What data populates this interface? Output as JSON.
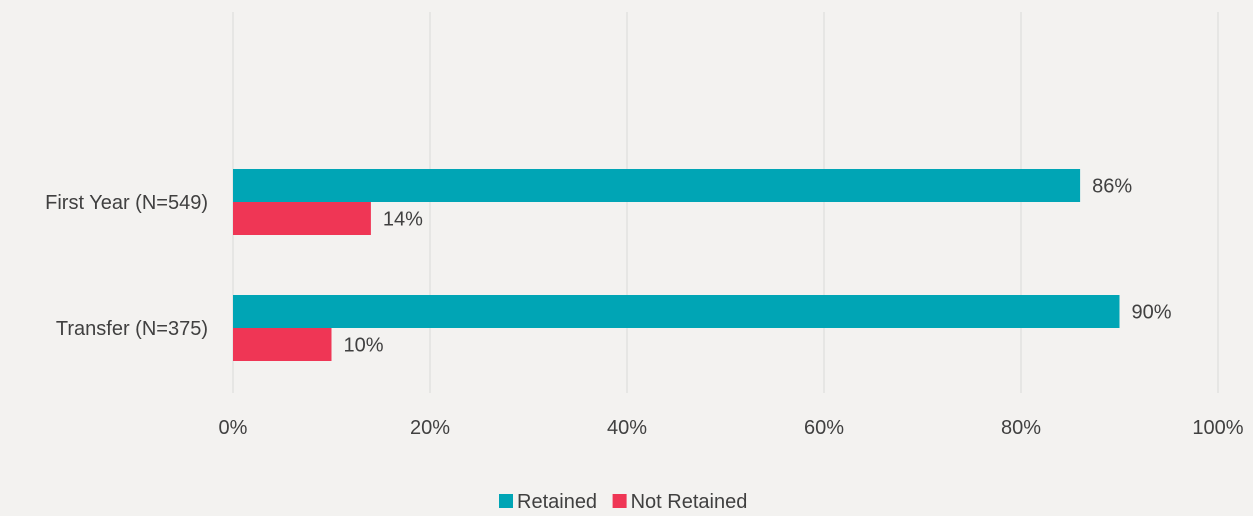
{
  "chart_data": {
    "type": "bar",
    "orientation": "horizontal",
    "categories": [
      "First Year (N=549)",
      "Transfer (N=375)"
    ],
    "series": [
      {
        "name": "Retained",
        "values": [
          86,
          90
        ],
        "labels": [
          "86%",
          "90%"
        ],
        "color": "#00a5b5"
      },
      {
        "name": "Not Retained",
        "values": [
          14,
          10
        ],
        "labels": [
          "14%",
          "10%"
        ],
        "color": "#ef3655"
      }
    ],
    "xlim": [
      0,
      100
    ],
    "xticks": [
      "0%",
      "20%",
      "40%",
      "60%",
      "80%",
      "100%"
    ],
    "xlabel": "",
    "ylabel": "",
    "grid": "vertical",
    "legend": "bottom-center"
  }
}
